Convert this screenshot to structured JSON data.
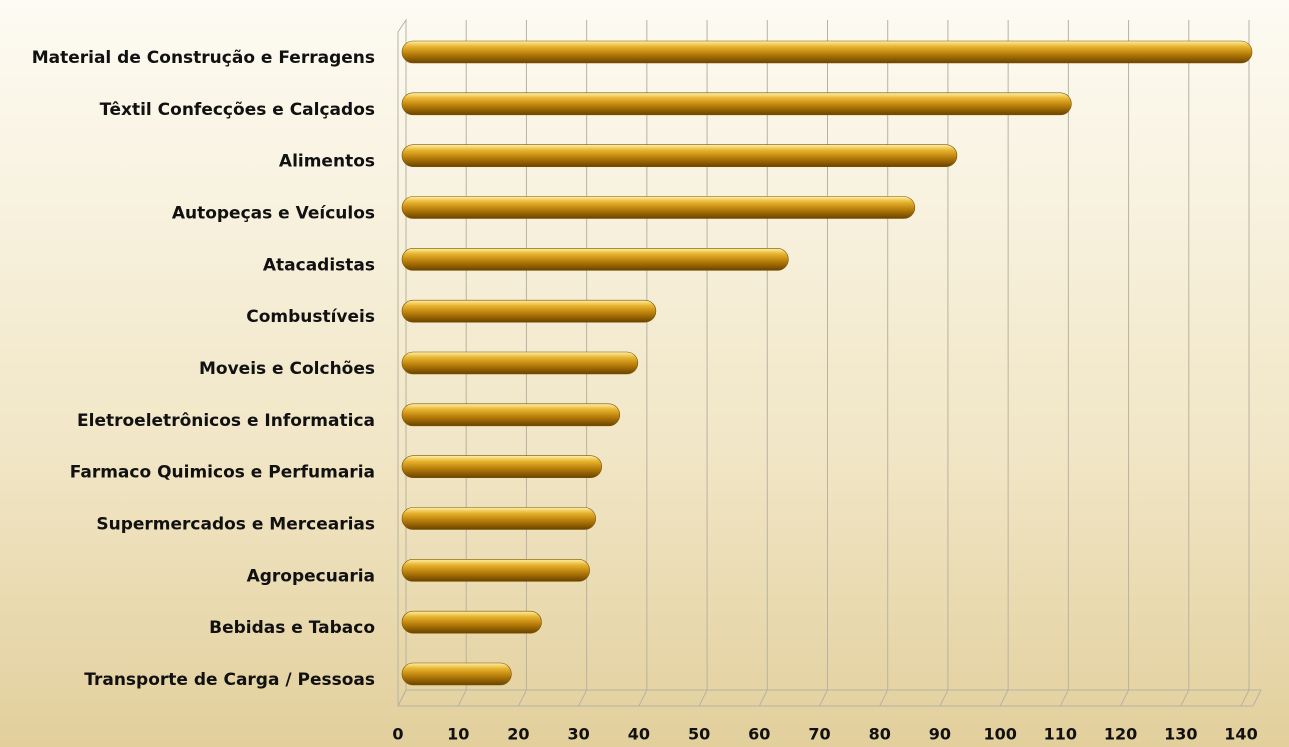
{
  "chart_data": {
    "type": "bar",
    "orientation": "horizontal",
    "categories": [
      "Material de Construção e Ferragens",
      "Têxtil Confecções e Calçados",
      "Alimentos",
      "Autopeças e Veículos",
      "Atacadistas",
      "Combustíveis",
      "Moveis e Colchões",
      "Eletroeletrônicos e Informatica",
      "Farmaco Quimicos e Perfumaria",
      "Supermercados e Mercearias",
      "Agropecuaria",
      "Bebidas e Tabaco",
      "Transporte de Carga / Pessoas"
    ],
    "values": [
      140,
      110,
      91,
      84,
      63,
      41,
      38,
      35,
      32,
      31,
      30,
      22,
      17
    ],
    "color": "#c8900a",
    "xlim": [
      0,
      140
    ],
    "xticks": [
      0,
      10,
      20,
      30,
      40,
      50,
      60,
      70,
      80,
      90,
      100,
      110,
      120,
      130,
      140
    ],
    "grid": true
  }
}
